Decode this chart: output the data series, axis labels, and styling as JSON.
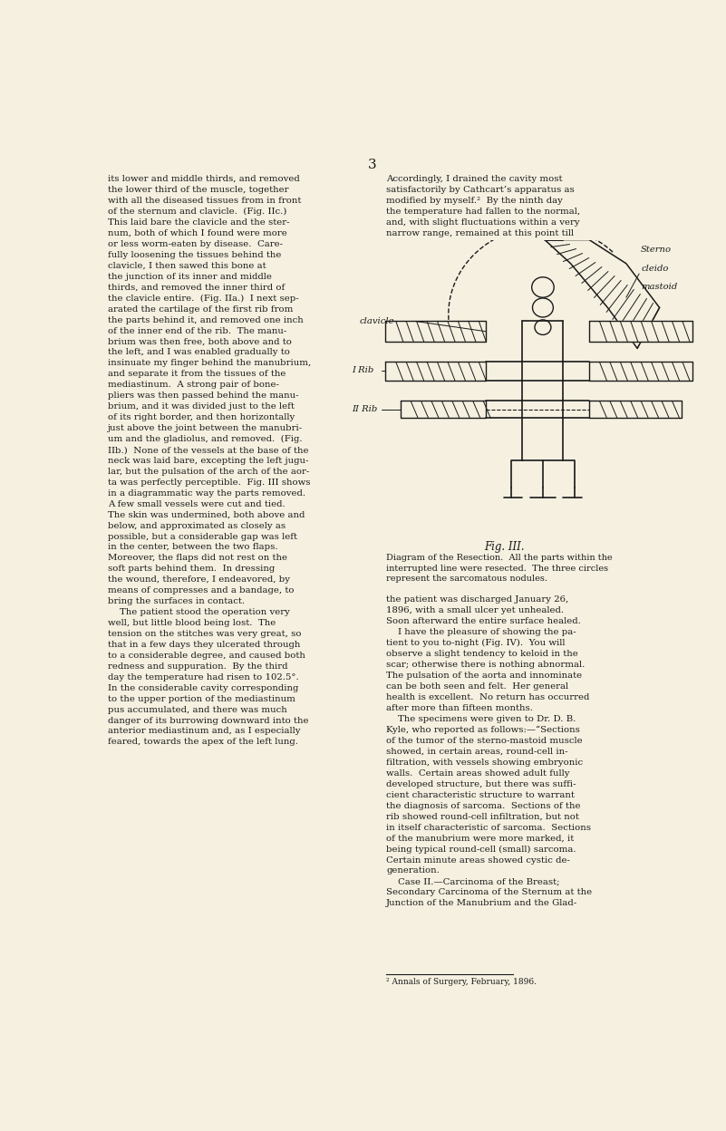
{
  "page_number": "3",
  "bg_color": "#f5f0e0",
  "text_color": "#1a1a1a",
  "footnote": "² Annals of Surgery, February, 1896.",
  "fig_caption": "Fig. III.",
  "fig_description": "Diagram of the Resection.  All the parts within the\ninterrupted line were resected.  The three circles\nrepresent the sarcomatous nodules."
}
